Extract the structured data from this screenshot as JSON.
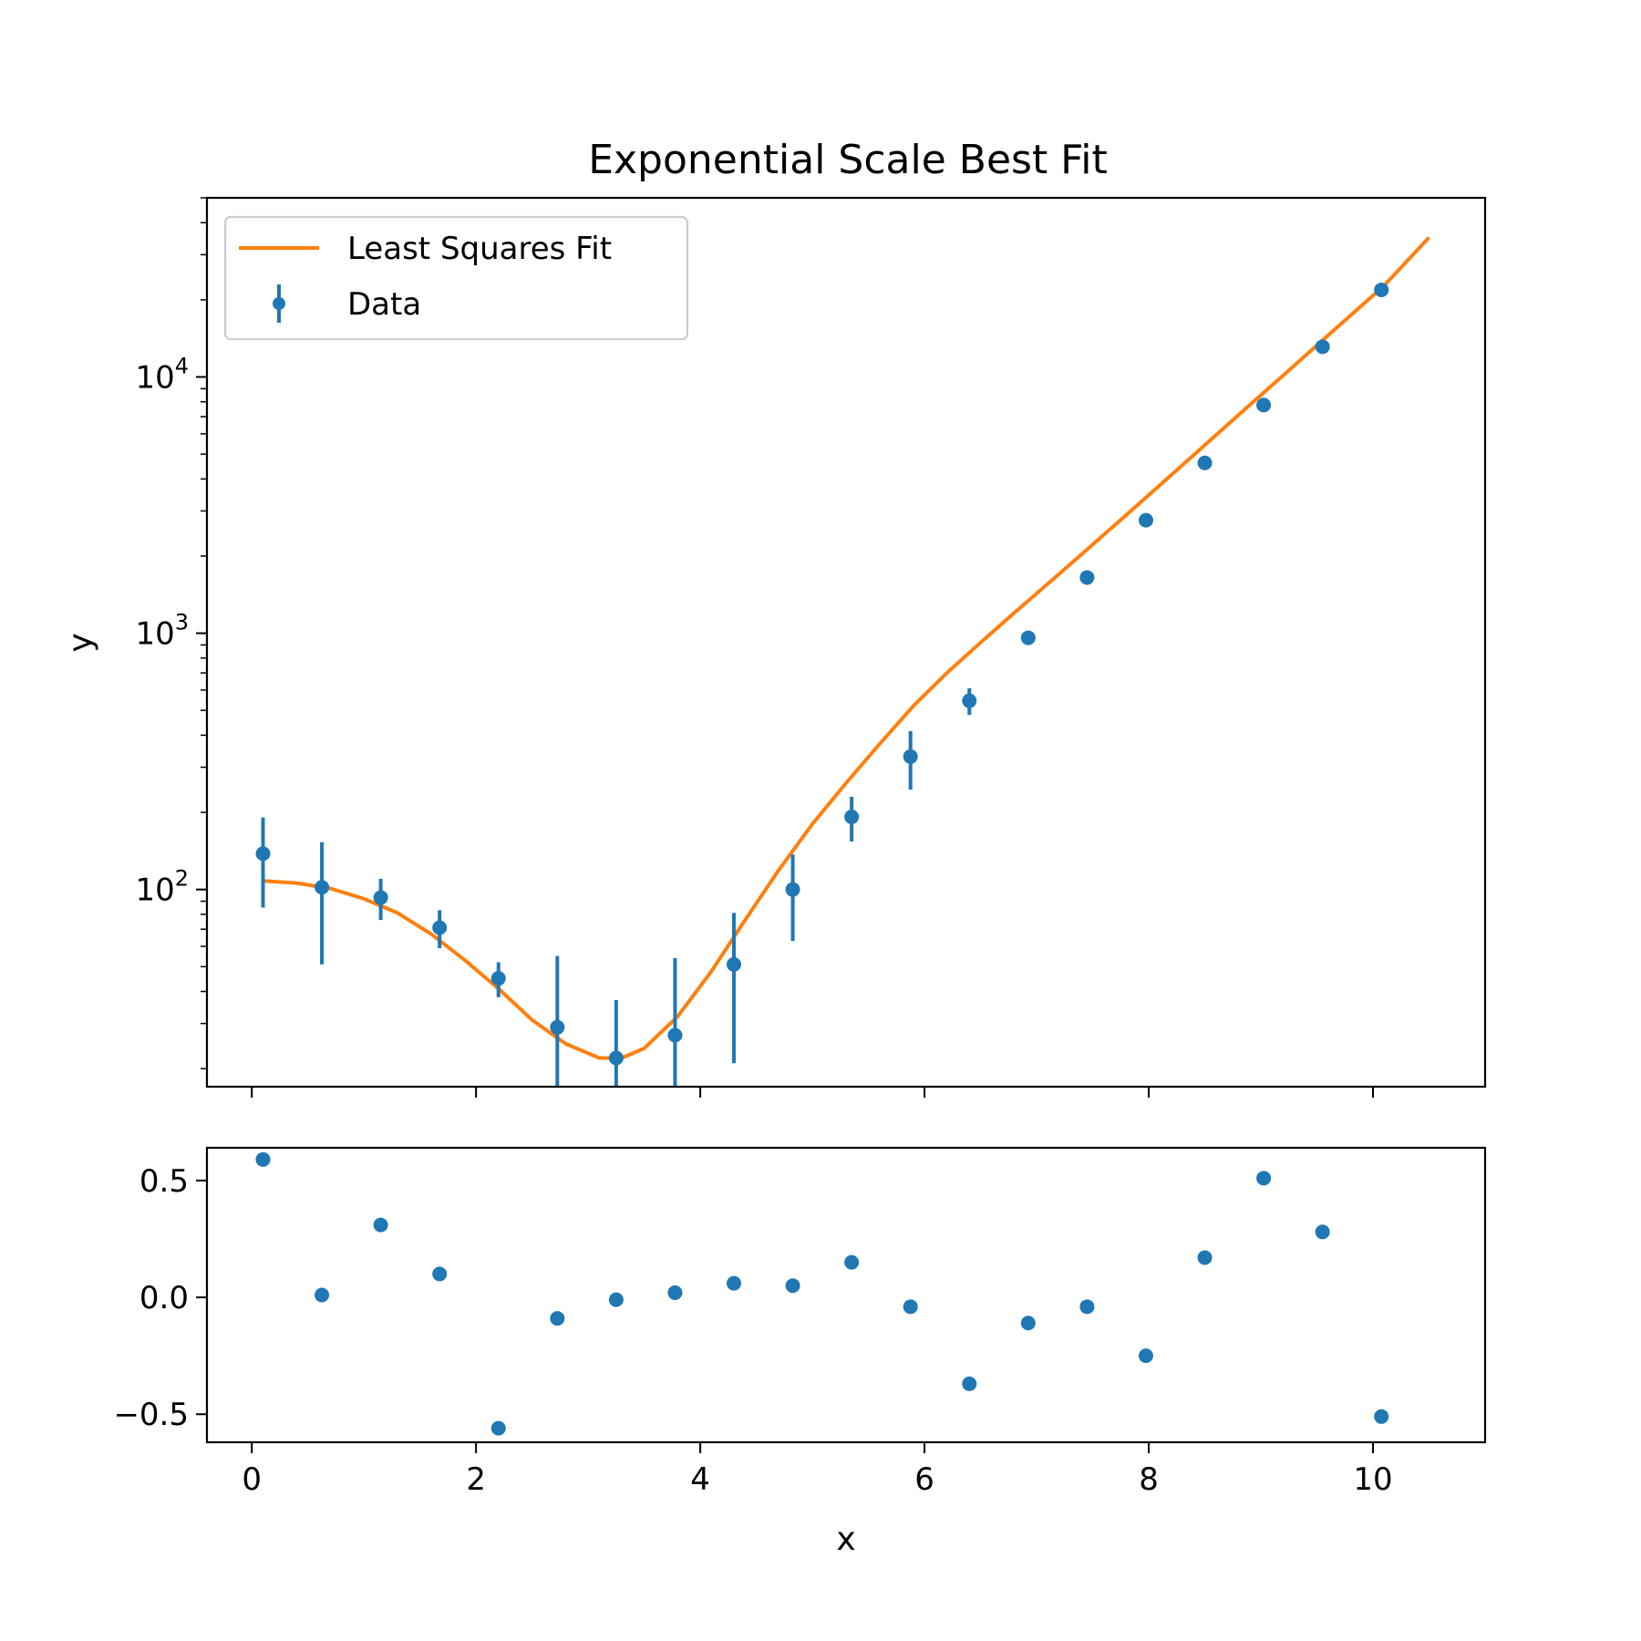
{
  "chart_data": [
    {
      "type": "scatter",
      "panel": "main",
      "title": "Exponential Scale Best Fit",
      "xlabel": "",
      "ylabel": "y",
      "yscale": "log",
      "ylim": [
        17,
        50000
      ],
      "xlim": [
        -0.4,
        11.0
      ],
      "xticks": [
        0,
        2,
        4,
        6,
        8,
        10
      ],
      "yticks": [
        {
          "value": 100,
          "base": "10",
          "exp": "2"
        },
        {
          "value": 1000,
          "base": "10",
          "exp": "3"
        },
        {
          "value": 10000,
          "base": "10",
          "exp": "4"
        }
      ],
      "grid": false,
      "legend_position": "upper-left",
      "series": [
        {
          "name": "Least Squares Fit",
          "kind": "line",
          "color": "#ff7f0e",
          "x": [
            0.1,
            0.4,
            0.7,
            1.0,
            1.3,
            1.6,
            1.9,
            2.2,
            2.5,
            2.8,
            3.1,
            3.3,
            3.5,
            3.8,
            4.1,
            4.4,
            4.7,
            5.0,
            5.3,
            5.6,
            5.9,
            6.2,
            6.5,
            6.8,
            7.1,
            7.4,
            7.7,
            8.0,
            8.3,
            8.6,
            8.9,
            9.2,
            9.5,
            9.8,
            10.1,
            10.5
          ],
          "y": [
            108,
            106,
            101,
            92,
            81,
            67,
            53,
            41,
            31,
            25,
            22,
            22,
            24,
            32,
            48,
            76,
            119,
            180,
            260,
            370,
            520,
            700,
            920,
            1200,
            1560,
            2030,
            2650,
            3460,
            4530,
            5930,
            7760,
            10150,
            13280,
            17380,
            22740,
            35000
          ]
        },
        {
          "name": "Data",
          "kind": "errorbar",
          "color": "#1f77b4",
          "x": [
            0.1,
            0.625,
            1.15,
            1.675,
            2.2,
            2.725,
            3.25,
            3.775,
            4.3,
            4.825,
            5.35,
            5.875,
            6.4,
            6.925,
            7.45,
            7.975,
            8.5,
            9.025,
            9.55,
            10.075
          ],
          "y": [
            138,
            102,
            93,
            71,
            45,
            29,
            22,
            27,
            51,
            100,
            192,
            330,
            545,
            960,
            1650,
            2760,
            4620,
            7770,
            13120,
            21870
          ],
          "yerr_low": [
            53,
            51,
            17,
            12,
            7,
            29,
            22,
            27,
            30,
            37,
            38,
            85,
            65,
            55,
            70,
            90,
            120,
            180,
            250,
            300
          ],
          "yerr_high": [
            53,
            51,
            17,
            12,
            7,
            26,
            15,
            27,
            30,
            37,
            38,
            85,
            65,
            55,
            70,
            90,
            120,
            180,
            250,
            300
          ]
        }
      ]
    },
    {
      "type": "scatter",
      "panel": "residuals",
      "title": "",
      "xlabel": "x",
      "ylabel": "",
      "xlim": [
        -0.4,
        11.0
      ],
      "ylim": [
        -0.62,
        0.64
      ],
      "xticks": [
        0,
        2,
        4,
        6,
        8,
        10
      ],
      "yticks": [
        {
          "value": -0.5,
          "label": "−0.5"
        },
        {
          "value": 0.0,
          "label": "0.0"
        },
        {
          "value": 0.5,
          "label": "0.5"
        }
      ],
      "grid": false,
      "series": [
        {
          "name": "",
          "kind": "points",
          "color": "#1f77b4",
          "x": [
            0.1,
            0.625,
            1.15,
            1.675,
            2.2,
            2.725,
            3.25,
            3.775,
            4.3,
            4.825,
            5.35,
            5.875,
            6.4,
            6.925,
            7.45,
            7.975,
            8.5,
            9.025,
            9.55,
            10.075
          ],
          "y": [
            0.59,
            0.01,
            0.31,
            0.1,
            -0.56,
            -0.09,
            -0.01,
            0.02,
            0.06,
            0.05,
            0.15,
            -0.04,
            -0.37,
            -0.11,
            -0.04,
            -0.25,
            0.17,
            0.51,
            0.28,
            -0.51
          ]
        }
      ]
    }
  ]
}
